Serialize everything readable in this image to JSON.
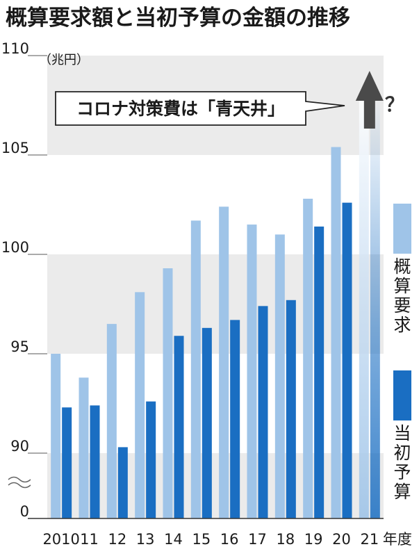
{
  "chart_data": {
    "type": "bar",
    "title": "概算要求額と当初予算の金額の推移",
    "unit": "（兆円）",
    "categories": [
      "2010",
      "11",
      "12",
      "13",
      "14",
      "15",
      "16",
      "17",
      "18",
      "19",
      "20",
      "21"
    ],
    "x_suffix": "年度",
    "series": [
      {
        "name": "概算要求",
        "color": "#9fc4e8",
        "values": [
          95.0,
          93.8,
          96.5,
          98.1,
          99.3,
          101.7,
          102.4,
          101.5,
          101.0,
          102.8,
          105.4,
          null
        ]
      },
      {
        "name": "当初予算",
        "color": "#1a6ec2",
        "values": [
          92.3,
          92.4,
          90.3,
          92.6,
          95.9,
          96.3,
          96.7,
          97.4,
          97.7,
          101.4,
          102.6,
          null
        ]
      }
    ],
    "y_ticks": [
      110,
      105,
      100,
      95,
      90,
      0
    ],
    "ylim_display": [
      90,
      110
    ],
    "axis_break": true,
    "callout": "コロナ対策費は「青天井」",
    "question_mark": "？",
    "colors": {
      "band": "#ebebeb",
      "text": "#1a1a1a",
      "arrow": "#4a4a4a"
    }
  }
}
